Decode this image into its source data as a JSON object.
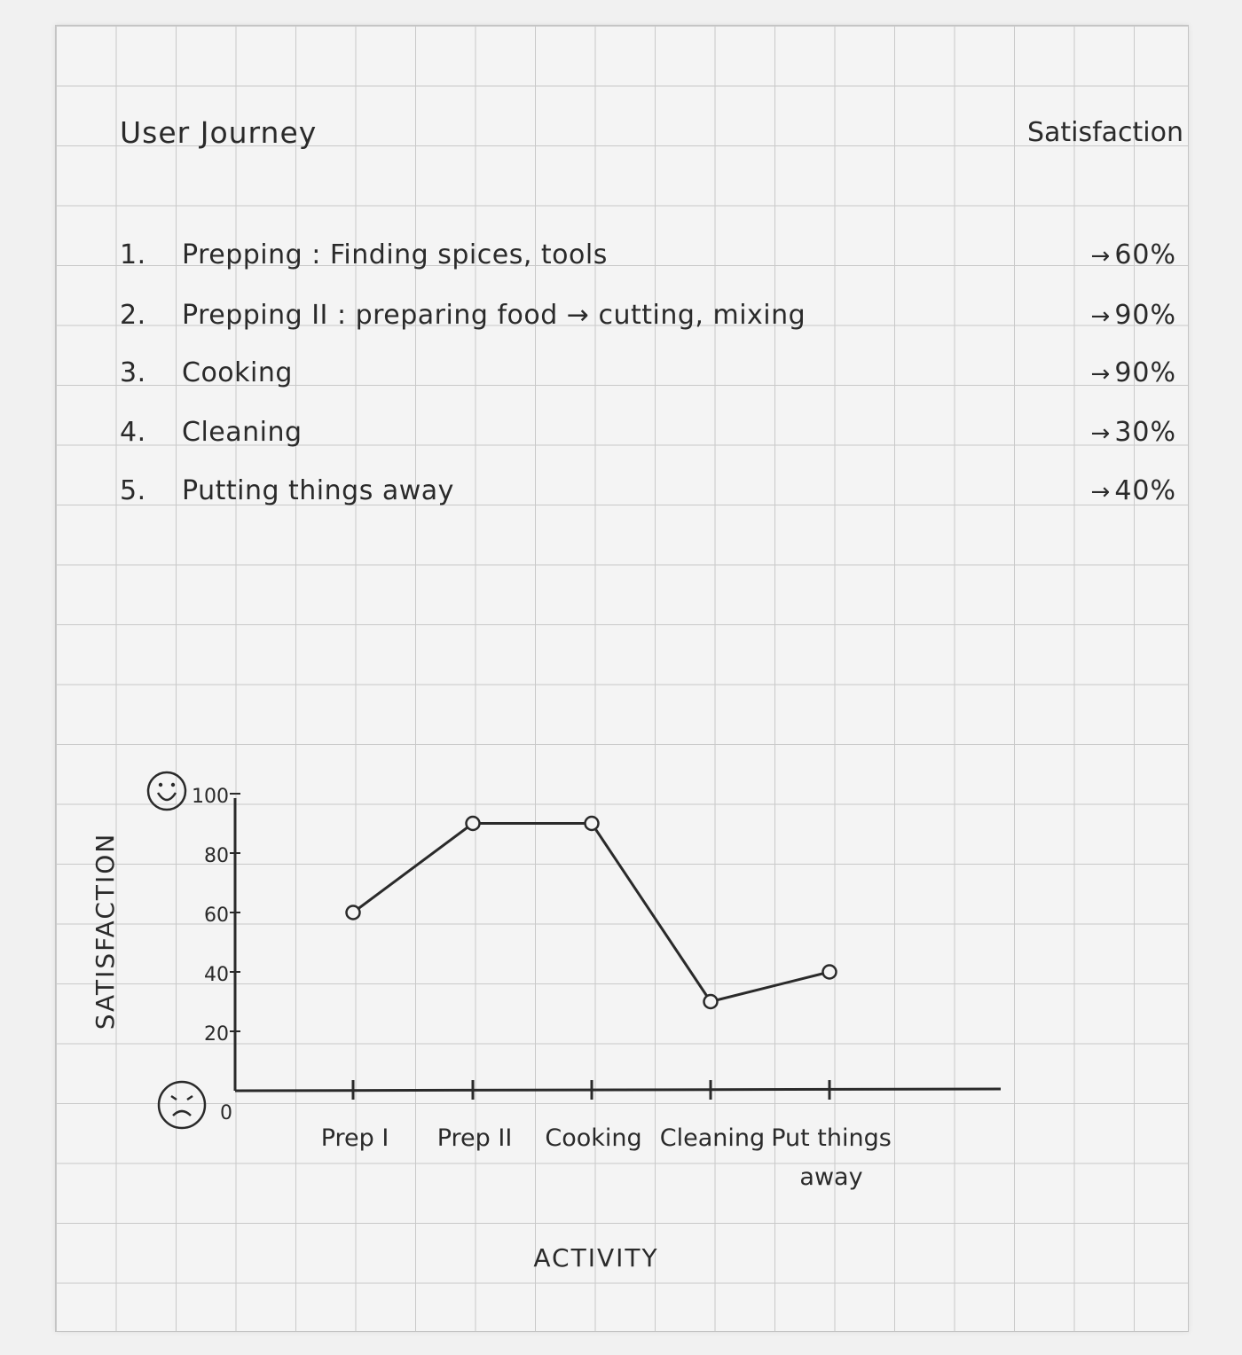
{
  "header": {
    "title": "User Journey",
    "satisfaction_heading": "Satisfaction"
  },
  "journey": [
    {
      "num": "1.",
      "text": "Prepping : Finding spices, tools",
      "pct": "60%"
    },
    {
      "num": "2.",
      "text": "Prepping II : preparing food → cutting, mixing",
      "pct": "90%"
    },
    {
      "num": "3.",
      "text": "Cooking",
      "pct": "90%"
    },
    {
      "num": "4.",
      "text": "Cleaning",
      "pct": "30%"
    },
    {
      "num": "5.",
      "text": "Putting things away",
      "pct": "40%"
    }
  ],
  "arrow_symbol": "→",
  "icons": {
    "top": "happy-face-icon",
    "bottom": "sad-face-icon"
  },
  "colors": {
    "ink": "#2a2a2a",
    "paper": "#f4f4f4",
    "grid": "#c9c9c9"
  },
  "chart_data": {
    "type": "line",
    "xlabel": "ACTIVITY",
    "ylabel": "SATISFACTION",
    "categories": [
      "Prep I",
      "Prep II",
      "Cooking",
      "Cleaning",
      "Put things away"
    ],
    "values": [
      60,
      90,
      90,
      30,
      40
    ],
    "y_ticks": [
      0,
      20,
      40,
      60,
      80,
      100
    ],
    "ylim": [
      0,
      100
    ],
    "grid": false,
    "legend": "none"
  }
}
